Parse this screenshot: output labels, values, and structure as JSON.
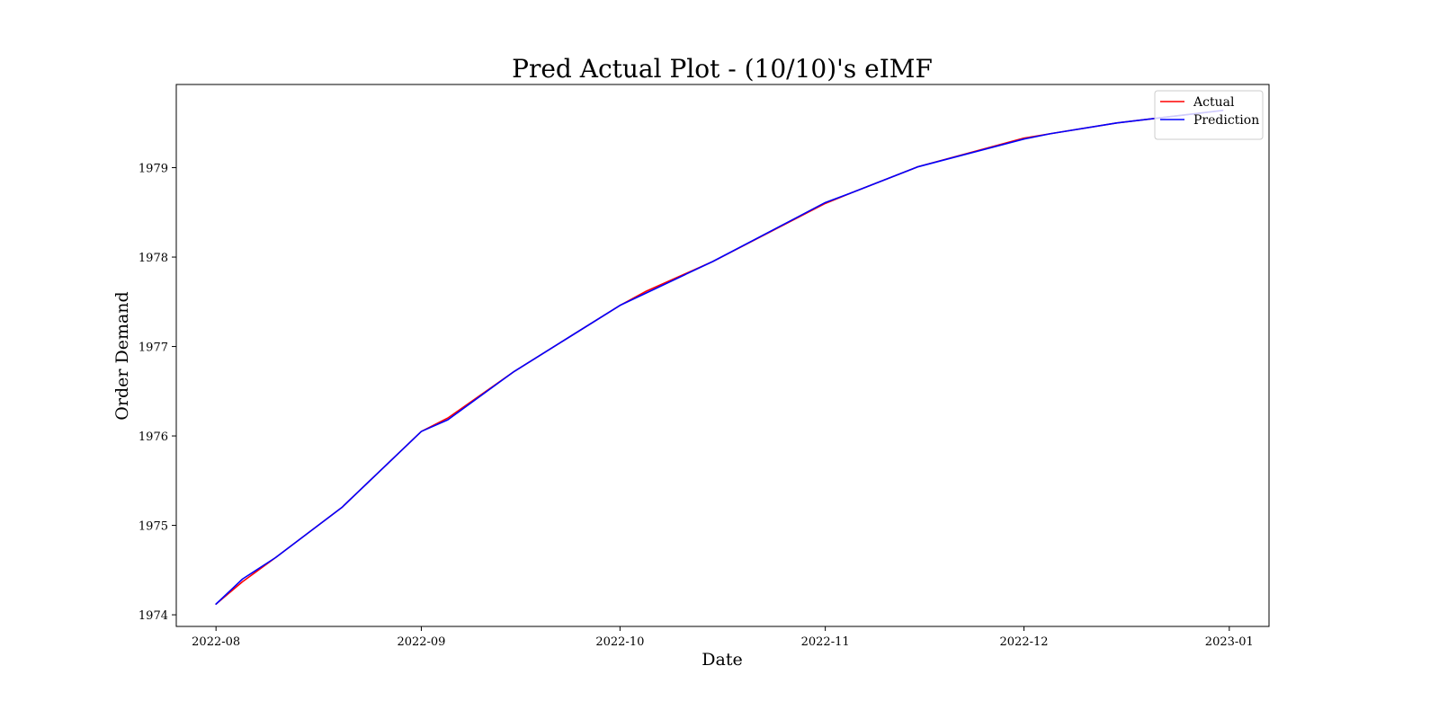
{
  "chart_data": {
    "type": "line",
    "title": "Pred Actual Plot - (10/10)'s eIMF",
    "xlabel": "Date",
    "ylabel": "Order Demand",
    "x_ticks": [
      "2022-08",
      "2022-09",
      "2022-10",
      "2022-11",
      "2022-12",
      "2023-01"
    ],
    "y_ticks": [
      "1974",
      "1975",
      "1976",
      "1977",
      "1978",
      "1979"
    ],
    "xlim": [
      "2022-07-26",
      "2023-01-07"
    ],
    "ylim": [
      1973.87,
      1979.93
    ],
    "grid": false,
    "legend_position": "top-right",
    "x": [
      "2022-08-01",
      "2022-08-05",
      "2022-08-10",
      "2022-08-20",
      "2022-09-01",
      "2022-09-05",
      "2022-09-15",
      "2022-10-01",
      "2022-10-05",
      "2022-10-15",
      "2022-11-01",
      "2022-11-05",
      "2022-11-15",
      "2022-12-01",
      "2022-12-05",
      "2022-12-15",
      "2022-12-31"
    ],
    "series": [
      {
        "name": "Actual",
        "color": "#ff0000",
        "values": [
          1974.12,
          1974.37,
          1974.64,
          1975.2,
          1976.05,
          1976.2,
          1976.72,
          1977.46,
          1977.62,
          1977.95,
          1978.6,
          1978.72,
          1979.01,
          1979.33,
          1979.38,
          1979.5,
          1979.64
        ]
      },
      {
        "name": "Prediction",
        "color": "#0000ff",
        "values": [
          1974.12,
          1974.4,
          1974.64,
          1975.2,
          1976.05,
          1976.18,
          1976.72,
          1977.46,
          1977.6,
          1977.95,
          1978.61,
          1978.72,
          1979.01,
          1979.32,
          1979.38,
          1979.5,
          1979.64
        ]
      }
    ]
  }
}
